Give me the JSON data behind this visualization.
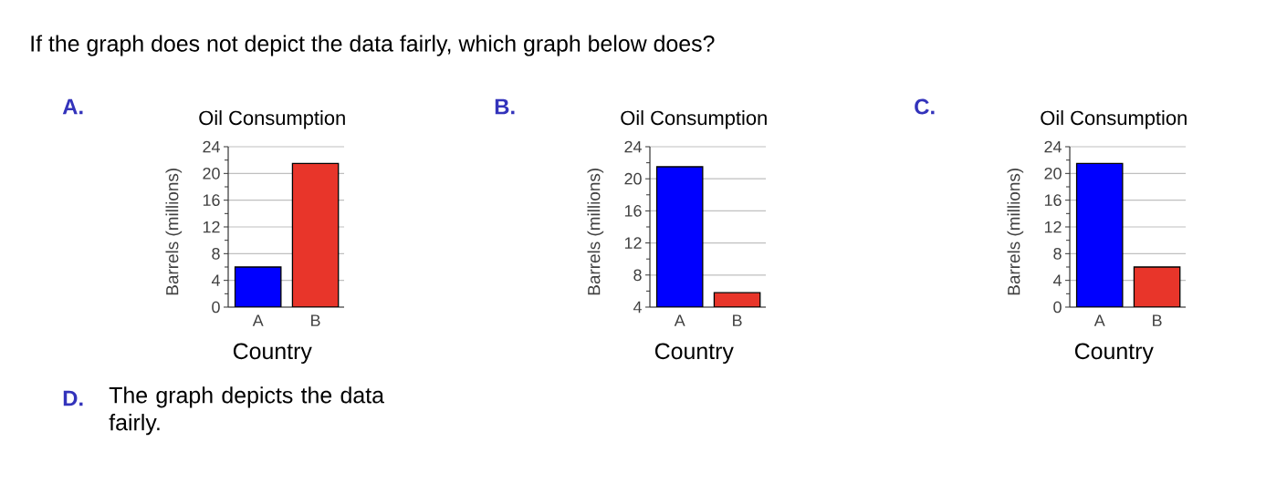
{
  "chart_data": [
    {
      "type": "other",
      "title": "If the graph does not depict the data fairly, which graph below does?"
    },
    {
      "type": "bar",
      "annotations": [
        "A."
      ],
      "title": "Oil Consumption",
      "xlabel": "Country",
      "ylabel": "Barrels (millions)",
      "categories": [
        "A",
        "B"
      ],
      "values": [
        6.0,
        21.5
      ],
      "colors": [
        "#0000ff",
        "#e8352a"
      ],
      "ylim": [
        0,
        24
      ],
      "yticks": [
        0,
        4,
        8,
        12,
        16,
        20,
        24
      ],
      "grid": "y"
    },
    {
      "type": "bar",
      "annotations": [
        "B."
      ],
      "title": "Oil Consumption",
      "xlabel": "Country",
      "ylabel": "Barrels (millions)",
      "categories": [
        "A",
        "B"
      ],
      "values": [
        21.5,
        5.8
      ],
      "colors": [
        "#0000ff",
        "#e8352a"
      ],
      "ylim": [
        4,
        24
      ],
      "yticks": [
        4,
        8,
        12,
        16,
        20,
        24
      ],
      "grid": "y"
    },
    {
      "type": "bar",
      "annotations": [
        "C."
      ],
      "title": "Oil Consumption",
      "xlabel": "Country",
      "ylabel": "Barrels (millions)",
      "categories": [
        "A",
        "B"
      ],
      "values": [
        21.5,
        6.0
      ],
      "colors": [
        "#0000ff",
        "#e8352a"
      ],
      "ylim": [
        0,
        24
      ],
      "yticks": [
        0,
        4,
        8,
        12,
        16,
        20,
        24
      ],
      "grid": "y"
    },
    {
      "type": "other",
      "annotations": [
        "D.",
        "The graph depicts the data fairly."
      ]
    }
  ]
}
